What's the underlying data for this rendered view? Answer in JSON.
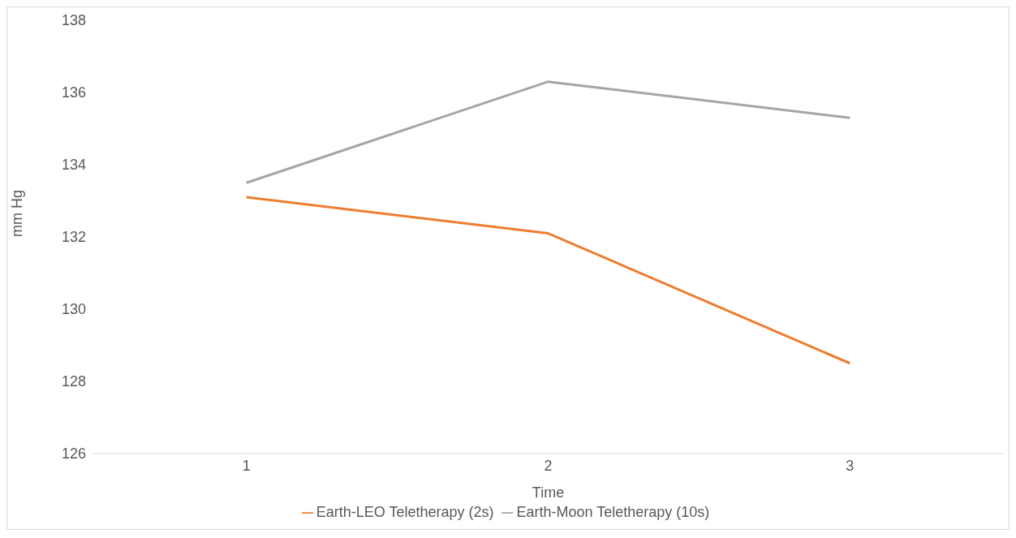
{
  "chart_data": {
    "type": "line",
    "xlabel": "Time",
    "ylabel": "mm Hg",
    "categories": [
      "1",
      "2",
      "3"
    ],
    "series": [
      {
        "name": "Earth-LEO Teletherapy (2s)",
        "color": "#ed7d31",
        "values": [
          133.1,
          132.1,
          128.5
        ]
      },
      {
        "name": "Earth-Moon Teletherapy (10s)",
        "color": "#a5a5a5",
        "values": [
          133.5,
          136.3,
          135.3
        ]
      }
    ],
    "ylim": [
      126,
      138
    ],
    "yticks": [
      126,
      128,
      130,
      132,
      134,
      136,
      138
    ],
    "grid": false,
    "legend": "bottom"
  }
}
